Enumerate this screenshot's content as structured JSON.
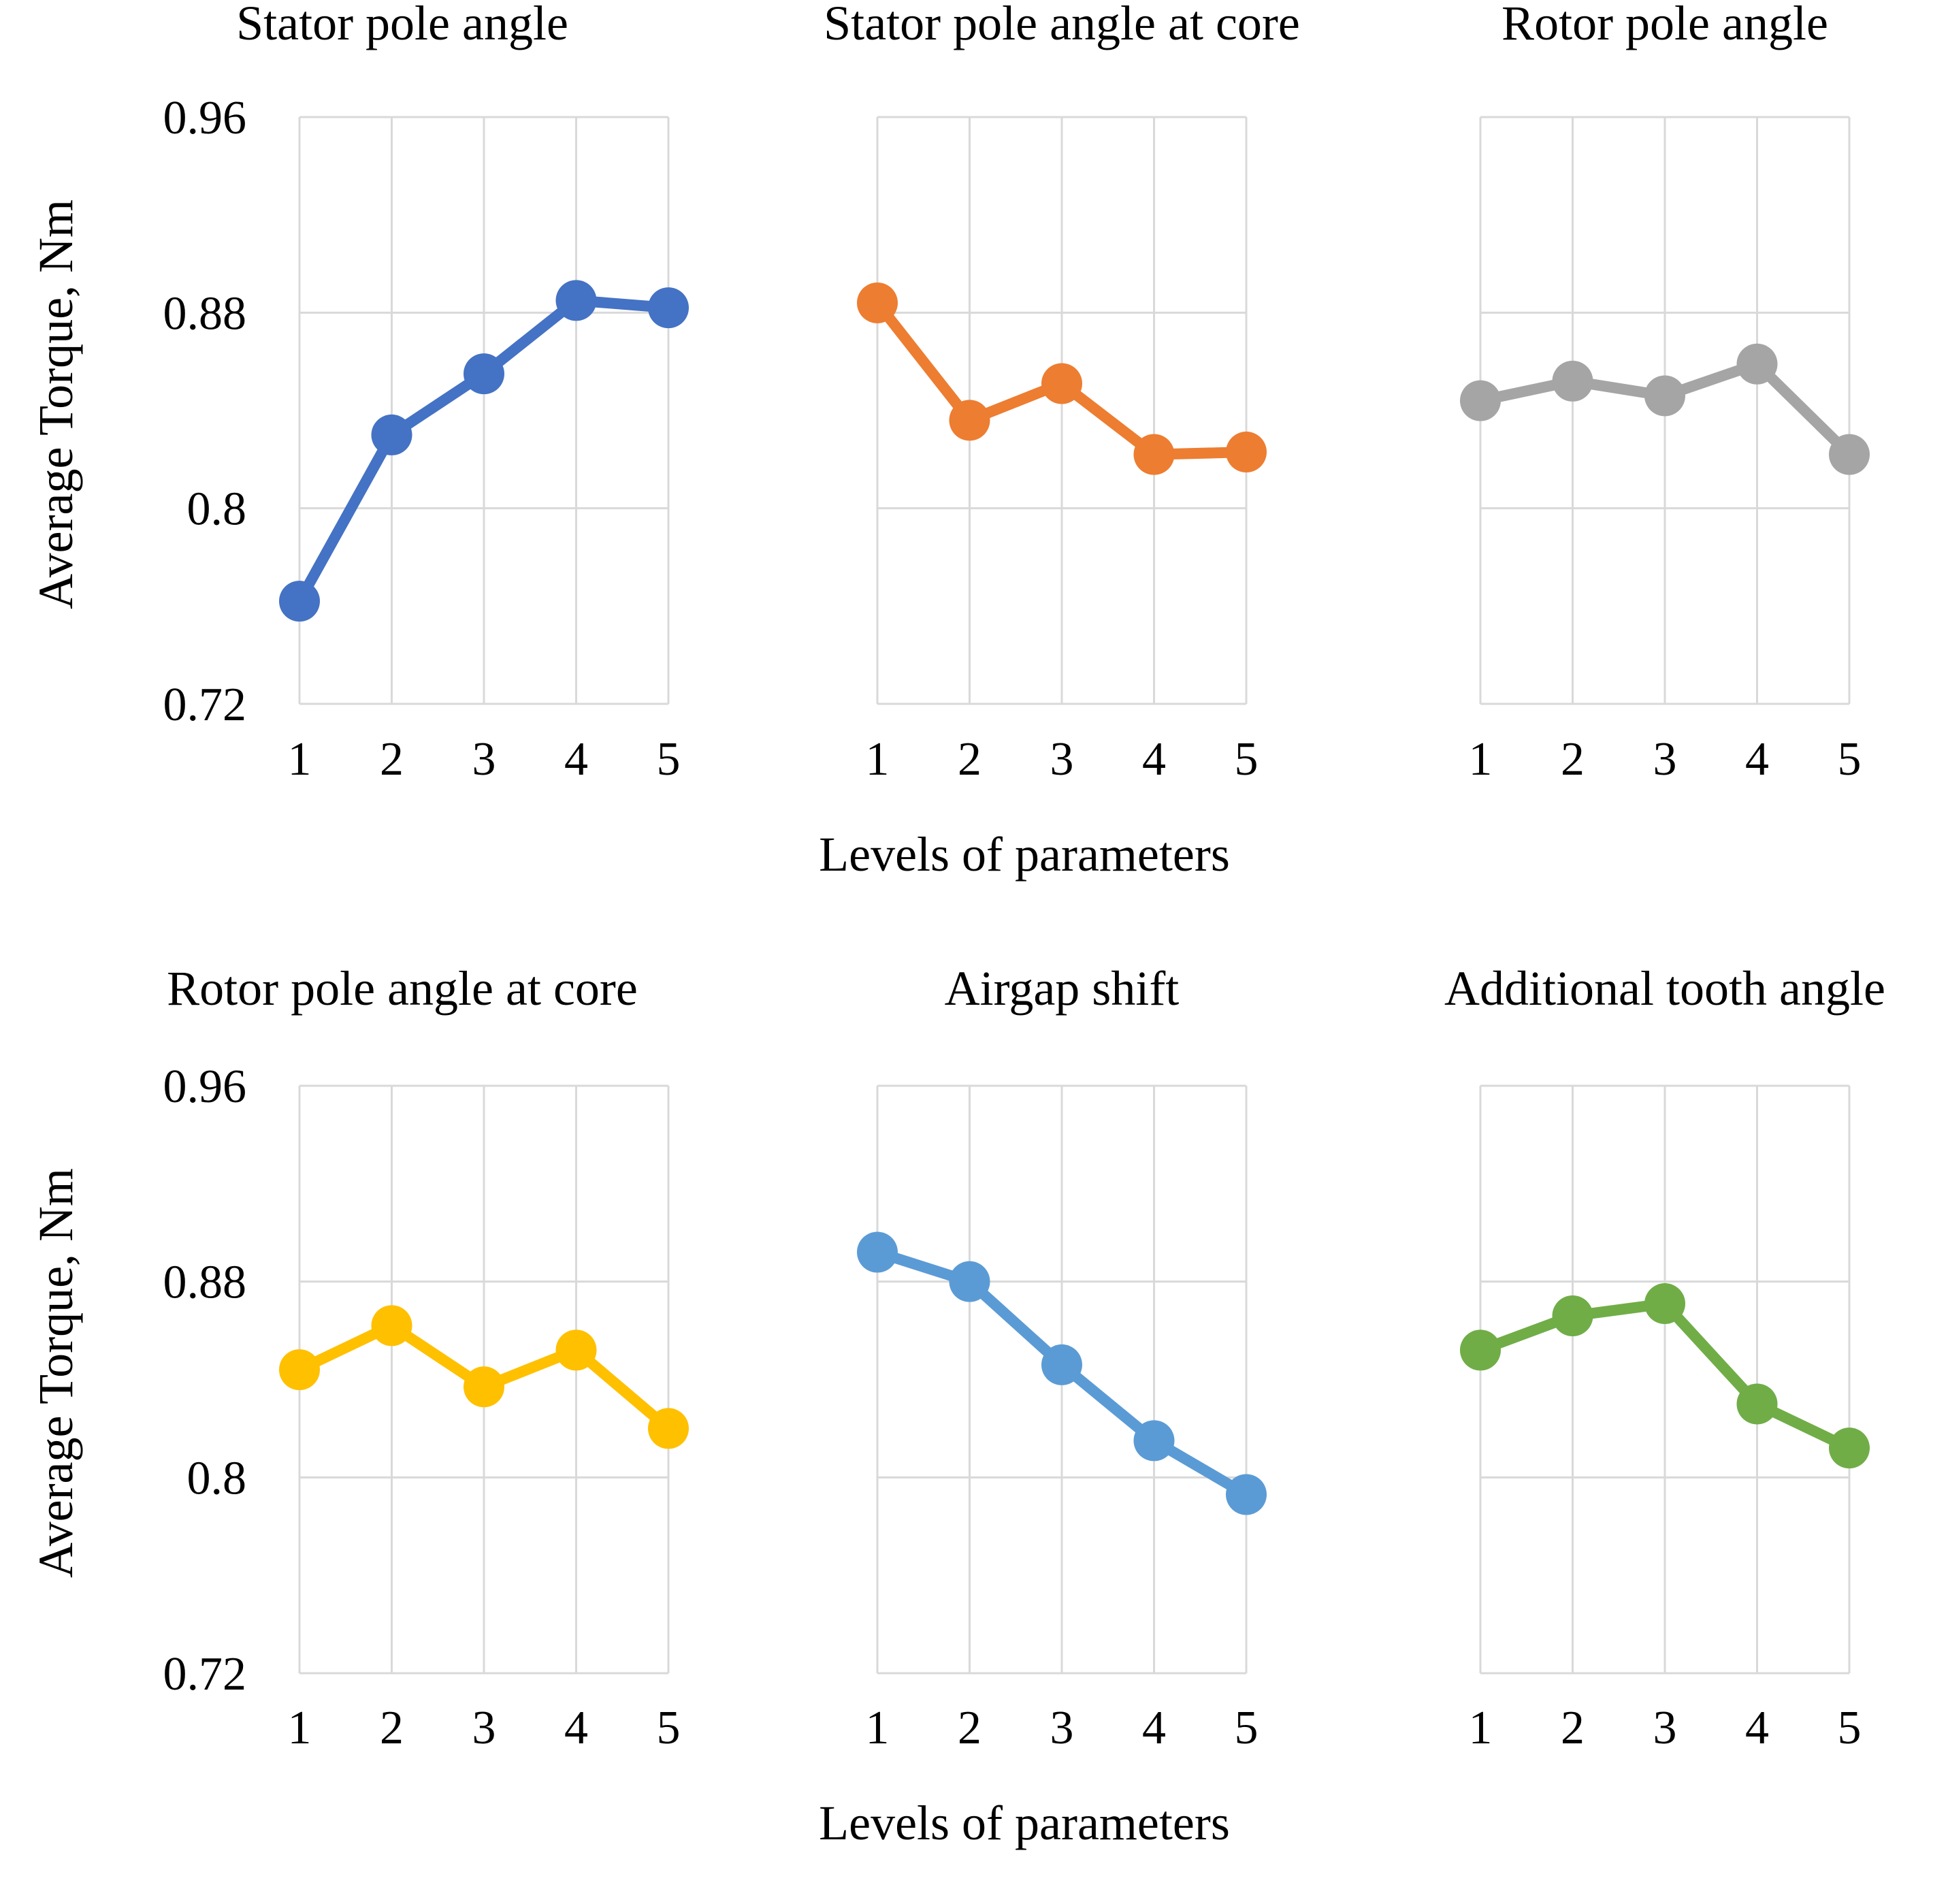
{
  "chart_data": [
    {
      "type": "line",
      "title": "Stator pole angle",
      "color": "#4472c4",
      "categories": [
        "1",
        "2",
        "3",
        "4",
        "5"
      ],
      "values": [
        0.762,
        0.83,
        0.855,
        0.885,
        0.882
      ],
      "ylabel": "Average Torque, Nm",
      "xlabel": "",
      "ylim": [
        0.72,
        0.96
      ],
      "yticks": [
        "0.96",
        "0.88",
        "0.8",
        "0.72"
      ],
      "grid": true
    },
    {
      "type": "line",
      "title": "Stator pole angle at core",
      "color": "#ed7d31",
      "categories": [
        "1",
        "2",
        "3",
        "4",
        "5"
      ],
      "values": [
        0.884,
        0.836,
        0.851,
        0.822,
        0.823
      ],
      "ylabel": "",
      "xlabel": "Levels of parameters",
      "ylim": [
        0.72,
        0.96
      ],
      "grid": true
    },
    {
      "type": "line",
      "title": "Rotor pole angle",
      "color": "#a5a5a5",
      "categories": [
        "1",
        "2",
        "3",
        "4",
        "5"
      ],
      "values": [
        0.844,
        0.852,
        0.846,
        0.859,
        0.822
      ],
      "ylabel": "",
      "xlabel": "",
      "ylim": [
        0.72,
        0.96
      ],
      "grid": true
    },
    {
      "type": "line",
      "title": "Rotor pole angle at core",
      "color": "#ffc000",
      "categories": [
        "1",
        "2",
        "3",
        "4",
        "5"
      ],
      "values": [
        0.844,
        0.862,
        0.837,
        0.852,
        0.82
      ],
      "ylabel": "Average Torque, Nm",
      "xlabel": "",
      "ylim": [
        0.72,
        0.96
      ],
      "yticks": [
        "0.96",
        "0.88",
        "0.8",
        "0.72"
      ],
      "grid": true
    },
    {
      "type": "line",
      "title": "Airgap shift",
      "color": "#5b9bd5",
      "categories": [
        "1",
        "2",
        "3",
        "4",
        "5"
      ],
      "values": [
        0.892,
        0.88,
        0.846,
        0.815,
        0.793
      ],
      "ylabel": "",
      "xlabel": "Levels of parameters",
      "ylim": [
        0.72,
        0.96
      ],
      "grid": true
    },
    {
      "type": "line",
      "title": "Additional tooth angle",
      "color": "#70ad47",
      "categories": [
        "1",
        "2",
        "3",
        "4",
        "5"
      ],
      "values": [
        0.852,
        0.866,
        0.871,
        0.83,
        0.812
      ],
      "ylabel": "",
      "xlabel": "",
      "ylim": [
        0.72,
        0.96
      ],
      "grid": true
    }
  ]
}
